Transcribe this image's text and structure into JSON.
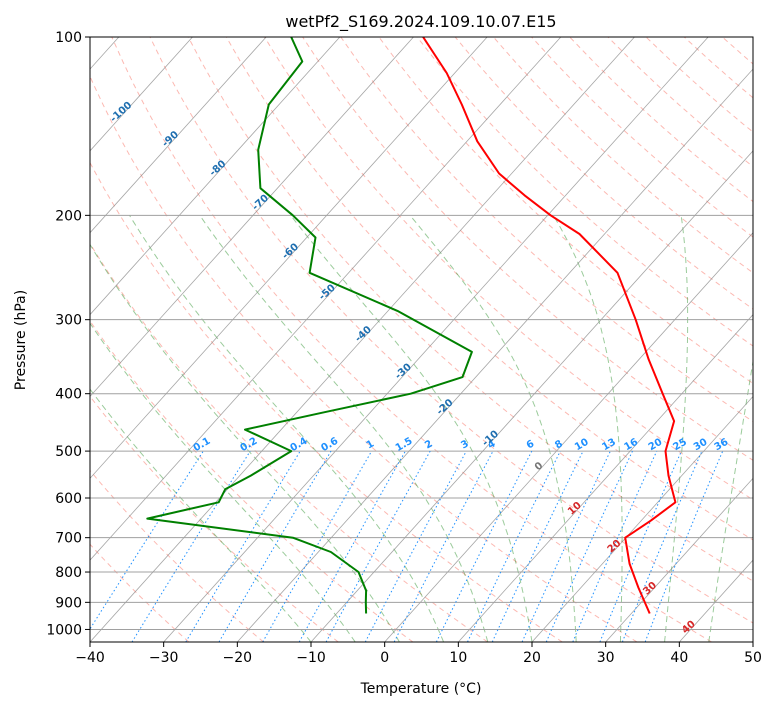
{
  "chart_data": {
    "type": "line",
    "title": "wetPf2_S169.2024.109.10.07.E15",
    "xlabel": "Temperature (°C)",
    "ylabel": "Pressure (hPa)",
    "xlim": [
      -40,
      50
    ],
    "ylim": [
      1050,
      100
    ],
    "y_scale": "log",
    "x_ticks": [
      -40,
      -30,
      -20,
      -10,
      0,
      10,
      20,
      30,
      40,
      50
    ],
    "x_tick_labels": [
      "−40",
      "−30",
      "−20",
      "−10",
      "0",
      "10",
      "20",
      "30",
      "40",
      "50"
    ],
    "y_ticks": [
      1000,
      900,
      800,
      700,
      600,
      500,
      400,
      300,
      200,
      100
    ],
    "y_tick_labels": [
      "1000",
      "900",
      "800",
      "700",
      "600",
      "500",
      "400",
      "300",
      "200",
      "100"
    ],
    "grid": true,
    "skewed_isotherm_labels": [
      {
        "t": -100,
        "p": 135,
        "label": "-100"
      },
      {
        "t": -90,
        "p": 150,
        "label": "-90"
      },
      {
        "t": -80,
        "p": 168,
        "label": "-80"
      },
      {
        "t": -70,
        "p": 192,
        "label": "-70"
      },
      {
        "t": -60,
        "p": 232,
        "label": "-60"
      },
      {
        "t": -50,
        "p": 272,
        "label": "-50"
      },
      {
        "t": -40,
        "p": 320,
        "label": "-40"
      },
      {
        "t": -30,
        "p": 370,
        "label": "-30"
      },
      {
        "t": -20,
        "p": 425,
        "label": "-20"
      },
      {
        "t": -10,
        "p": 480,
        "label": "-10"
      },
      {
        "t": 0,
        "p": 535,
        "label": "0"
      },
      {
        "t": 10,
        "p": 630,
        "label": "10"
      },
      {
        "t": 20,
        "p": 730,
        "label": "20"
      },
      {
        "t": 30,
        "p": 860,
        "label": "30"
      },
      {
        "t": 40,
        "p": 1000,
        "label": "40"
      }
    ],
    "mixing_ratio_labels": [
      "0.1",
      "0.2",
      "0.4",
      "0.6",
      "1",
      "1.5",
      "2",
      "3",
      "4",
      "6",
      "8",
      "10",
      "13",
      "16",
      "20",
      "25",
      "30",
      "36"
    ],
    "mixing_ratio_label_pressure": 500,
    "series": [
      {
        "name": "temperature",
        "color": "#ff0000",
        "points": [
          [
            32.5,
            940
          ],
          [
            27.8,
            850
          ],
          [
            23.7,
            775
          ],
          [
            19.9,
            700
          ],
          [
            21.3,
            655
          ],
          [
            22.4,
            610
          ],
          [
            18.2,
            550
          ],
          [
            14.8,
            500
          ],
          [
            12.3,
            445
          ],
          [
            7.4,
            400
          ],
          [
            1.3,
            350
          ],
          [
            -5.3,
            300
          ],
          [
            -13.5,
            250
          ],
          [
            -23.4,
            215
          ],
          [
            -29.6,
            200
          ],
          [
            -35.6,
            185
          ],
          [
            -41.7,
            170
          ],
          [
            -48.6,
            150
          ],
          [
            -55.2,
            130
          ],
          [
            -61.1,
            115
          ],
          [
            -68.7,
            100
          ]
        ]
      },
      {
        "name": "dewpoint",
        "color": "#008000",
        "points": [
          [
            -6.0,
            940
          ],
          [
            -7.4,
            900
          ],
          [
            -8.8,
            860
          ],
          [
            -12.1,
            800
          ],
          [
            -18.3,
            740
          ],
          [
            -25.2,
            700
          ],
          [
            -47.3,
            650
          ],
          [
            -39.6,
            610
          ],
          [
            -40.3,
            580
          ],
          [
            -38.5,
            550
          ],
          [
            -36.0,
            500
          ],
          [
            -44.9,
            460
          ],
          [
            -36.3,
            430
          ],
          [
            -26.8,
            400
          ],
          [
            -21.8,
            375
          ],
          [
            -23.6,
            340
          ],
          [
            -38.7,
            290
          ],
          [
            -55.3,
            250
          ],
          [
            -58.8,
            218
          ],
          [
            -64.6,
            200
          ],
          [
            -72.3,
            180
          ],
          [
            -77.3,
            155
          ],
          [
            -81.4,
            130
          ],
          [
            -82.1,
            110
          ],
          [
            -86.6,
            100
          ]
        ]
      }
    ],
    "overlay_colors": {
      "dry_adiabat": "#fa8072",
      "moist_adiabat": "#228b22",
      "mixing_ratio": "#1e90ff",
      "isotherm": "#808080",
      "isobar": "#a0a0a0",
      "isotherm_label": "#1f6fb0",
      "zero_label": "#777777",
      "warm_label": "#d62728"
    }
  }
}
